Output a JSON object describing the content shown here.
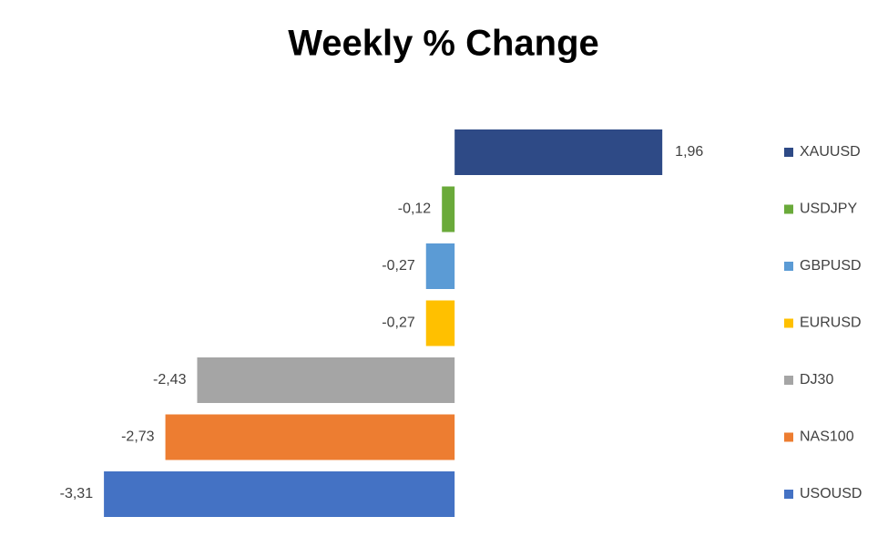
{
  "chart_data": {
    "type": "bar",
    "orientation": "horizontal",
    "title": "Weekly % Change",
    "xlim": [
      -3.5,
      2.5
    ],
    "series": [
      {
        "name": "XAUUSD",
        "color": "#2e4a86",
        "values": [
          1.96
        ],
        "value_labels": [
          "1,96"
        ]
      },
      {
        "name": "USDJPY",
        "color": "#6aaa3a",
        "values": [
          -0.12
        ],
        "value_labels": [
          "-0,12"
        ]
      },
      {
        "name": "GBPUSD",
        "color": "#5b9bd5",
        "values": [
          -0.27
        ],
        "value_labels": [
          "-0,27"
        ]
      },
      {
        "name": "EURUSD",
        "color": "#ffc000",
        "values": [
          -0.27
        ],
        "value_labels": [
          "-0,27"
        ]
      },
      {
        "name": "DJ30",
        "color": "#a5a5a5",
        "values": [
          -2.43
        ],
        "value_labels": [
          "-2,43"
        ]
      },
      {
        "name": "NAS100",
        "color": "#ed7d31",
        "values": [
          -2.73
        ],
        "value_labels": [
          "-2,73"
        ]
      },
      {
        "name": "USOUSD",
        "color": "#4472c4",
        "values": [
          -3.31
        ],
        "value_labels": [
          "-3,31"
        ]
      }
    ]
  }
}
